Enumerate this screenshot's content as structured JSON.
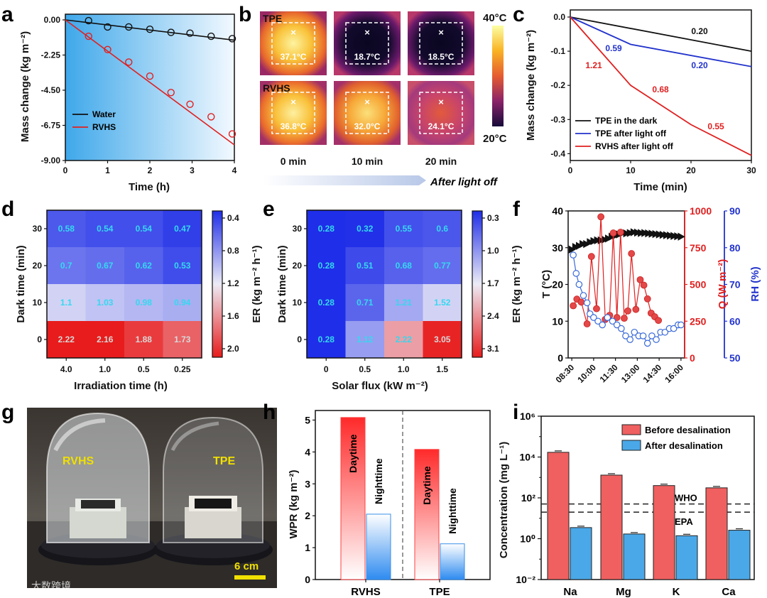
{
  "panel_labels": [
    "a",
    "b",
    "c",
    "d",
    "e",
    "f",
    "g",
    "h",
    "i"
  ],
  "watermark": "大数跨境",
  "colors": {
    "black": "#111111",
    "red": "#e02020",
    "blue": "#2233cc",
    "light_blue": "#4aa8e8",
    "salmon": "#f06060"
  },
  "chart_data": [
    {
      "id": "a",
      "type": "scatter",
      "xlabel": "Time (h)",
      "ylabel": "Mass change (kg m⁻²)",
      "xlim": [
        0,
        4
      ],
      "ylim": [
        -9.0,
        0.0
      ],
      "xticks": [
        "0",
        "1",
        "2",
        "3",
        "4"
      ],
      "yticks": [
        "0.00",
        "-2.25",
        "-4.50",
        "-6.75",
        "-9.00"
      ],
      "series": [
        {
          "name": "Water",
          "x": [
            0.55,
            1.0,
            1.5,
            2.0,
            2.5,
            2.95,
            3.45,
            3.95
          ],
          "y": [
            -0.05,
            -0.45,
            -0.45,
            -0.6,
            -0.8,
            -0.85,
            -1.05,
            -1.2
          ],
          "fit": [
            [
              0,
              0
            ],
            [
              4,
              -1.3
            ]
          ]
        },
        {
          "name": "RVHS",
          "x": [
            0.55,
            1.0,
            1.5,
            2.0,
            2.5,
            2.95,
            3.45,
            3.95
          ],
          "y": [
            -1.05,
            -1.9,
            -2.7,
            -3.6,
            -4.65,
            -5.4,
            -6.2,
            -7.3
          ],
          "fit": [
            [
              0,
              0
            ],
            [
              4,
              -8.0
            ]
          ]
        }
      ],
      "legend": "bottom-left"
    },
    {
      "id": "b",
      "type": "heatmap",
      "rows": [
        "TPE",
        "RVHS"
      ],
      "columns": [
        "0 min",
        "10 min",
        "20 min"
      ],
      "values": [
        [
          "37.1°C",
          "18.7°C",
          "18.5°C"
        ],
        [
          "36.8°C",
          "32.0°C",
          "24.1°C"
        ]
      ],
      "colorbar": [
        "40°C",
        "20°C"
      ],
      "annotation": "After light off"
    },
    {
      "id": "c",
      "type": "line",
      "xlabel": "Time (min)",
      "ylabel": "Mass change (kg m⁻²)",
      "xlim": [
        0,
        30
      ],
      "ylim": [
        -0.42,
        0.0
      ],
      "xticks": [
        "0",
        "10",
        "20",
        "30"
      ],
      "yticks": [
        "0.0",
        "-0.1",
        "-0.2",
        "-0.3",
        "-0.4"
      ],
      "series": [
        {
          "name": "TPE in the dark",
          "x": [
            0,
            30
          ],
          "y": [
            0,
            -0.1
          ],
          "labels": [
            "0.20"
          ]
        },
        {
          "name": "TPE after light off",
          "x": [
            0,
            10,
            30
          ],
          "y": [
            0,
            -0.08,
            -0.145
          ],
          "labels": [
            "0.59",
            "0.20"
          ]
        },
        {
          "name": "RVHS after light off",
          "x": [
            0,
            10,
            20,
            30
          ],
          "y": [
            0,
            -0.2,
            -0.315,
            -0.405
          ],
          "labels": [
            "1.21",
            "0.68",
            "0.55"
          ]
        }
      ],
      "legend": "bottom-left"
    },
    {
      "id": "d",
      "type": "heatmap",
      "xlabel": "Irradiation time (h)",
      "ylabel": "Dark time (min)",
      "x": [
        "4.0",
        "1.0",
        "0.5",
        "0.25"
      ],
      "y": [
        "30",
        "20",
        "10",
        "0"
      ],
      "values": [
        [
          "0.58",
          "0.54",
          "0.54",
          "0.47"
        ],
        [
          "0.7",
          "0.67",
          "0.62",
          "0.53"
        ],
        [
          "1.1",
          "1.03",
          "0.98",
          "0.94"
        ],
        [
          "2.22",
          "2.16",
          "1.88",
          "1.73"
        ]
      ],
      "colorbar_label": "ER (kg m⁻² h⁻¹)",
      "colorbar_ticks": [
        "0.4",
        "0.8",
        "1.2",
        "1.6",
        "2.0"
      ]
    },
    {
      "id": "e",
      "type": "heatmap",
      "xlabel": "Solar flux (kW m⁻²)",
      "ylabel": "Dark time (min)",
      "x": [
        "0",
        "0.5",
        "1.0",
        "1.5"
      ],
      "y": [
        "30",
        "20",
        "10",
        "0"
      ],
      "values": [
        [
          "0.28",
          "0.32",
          "0.55",
          "0.6"
        ],
        [
          "0.28",
          "0.51",
          "0.68",
          "0.77"
        ],
        [
          "0.28",
          "0.71",
          "1.21",
          "1.52"
        ],
        [
          "0.28",
          "1.12",
          "2.22",
          "3.05"
        ]
      ],
      "colorbar_label": "ER (kg m⁻² h⁻¹)",
      "colorbar_ticks": [
        "0.3",
        "1.0",
        "1.7",
        "2.4",
        "3.1"
      ]
    },
    {
      "id": "f",
      "type": "line",
      "ylabel_left": "T (°C)",
      "ylabel_right1": "Q (W m⁻²)",
      "ylabel_right2": "RH (%)",
      "xticks": [
        "08:30",
        "10:00",
        "11:30",
        "13:00",
        "14:30",
        "16:00"
      ],
      "yticks_left": [
        "0",
        "10",
        "20",
        "30",
        "40"
      ],
      "yticks_right1": [
        "0",
        "250",
        "500",
        "750",
        "1000"
      ],
      "yticks_right2": [
        "50",
        "60",
        "70",
        "80",
        "90"
      ],
      "x": [
        8.5,
        8.75,
        9.0,
        9.25,
        9.5,
        9.75,
        10.0,
        10.25,
        10.5,
        10.75,
        11.0,
        11.25,
        11.5,
        11.75,
        12.0,
        12.25,
        12.5,
        12.75,
        13.0,
        13.25,
        13.5,
        13.75,
        14.0,
        14.25,
        14.5,
        14.75,
        15.0,
        15.25,
        15.5,
        15.75,
        16.0
      ],
      "series": [
        {
          "name": "T",
          "y": [
            29.5,
            30.2,
            30.5,
            31.0,
            31.0,
            31.5,
            31.8,
            32.0,
            32.0,
            32.2,
            32.5,
            33.0,
            33.3,
            33.6,
            34.0,
            33.9,
            34.0,
            34.2,
            34.1,
            34.0,
            34.0,
            33.9,
            33.8,
            33.7,
            33.6,
            33.5,
            33.4,
            33.3,
            33.2,
            33.1,
            33.0
          ]
        },
        {
          "name": "Q",
          "x": [
            8.6,
            8.85,
            9.15,
            9.55,
            9.85,
            10.2,
            10.5,
            10.8,
            11.1,
            11.35,
            11.6,
            11.85,
            12.1,
            12.35,
            12.6,
            12.9,
            13.2,
            13.45,
            13.7,
            13.95,
            14.2,
            14.45
          ],
          "y": [
            355,
            400,
            380,
            232,
            690,
            335,
            960,
            262,
            290,
            850,
            275,
            855,
            270,
            320,
            710,
            330,
            532,
            495,
            402,
            305,
            280,
            255
          ]
        },
        {
          "name": "RH",
          "x": [
            8.6,
            8.8,
            9.0,
            9.3,
            9.55,
            9.75,
            10.0,
            10.3,
            10.6,
            10.95,
            11.3,
            11.6,
            11.9,
            12.2,
            12.5,
            12.8,
            13.1,
            13.4,
            13.7,
            14.0,
            14.3,
            14.6,
            14.9,
            15.2,
            15.5,
            15.8,
            16.0
          ],
          "y": [
            78,
            73,
            70,
            67,
            65,
            62,
            61,
            60,
            59,
            61,
            60,
            59,
            58,
            56,
            55,
            57,
            56,
            56,
            54,
            56,
            55,
            57,
            57,
            58,
            58,
            59,
            59
          ]
        }
      ]
    },
    {
      "id": "h",
      "type": "bar",
      "ylabel": "WPR (kg m⁻²)",
      "categories": [
        "RVHS",
        "TPE"
      ],
      "yticks": [
        "0",
        "1",
        "2",
        "3",
        "4",
        "5"
      ],
      "ylim": [
        0,
        5.3
      ],
      "series": [
        {
          "name": "Daytime",
          "values": [
            5.08,
            4.08
          ]
        },
        {
          "name": "Nighttime",
          "values": [
            2.05,
            1.12
          ]
        }
      ]
    },
    {
      "id": "i",
      "type": "bar",
      "ylabel": "Concentration (mg L⁻¹)",
      "yscale": "log",
      "categories": [
        "Na",
        "Mg",
        "K",
        "Ca"
      ],
      "yticks": [
        "10⁻²",
        "10⁰",
        "10²",
        "10⁴",
        "10⁶"
      ],
      "series": [
        {
          "name": "Before desalination",
          "values": [
            17000,
            1300,
            400,
            310
          ]
        },
        {
          "name": "After desalination",
          "values": [
            3.5,
            1.7,
            1.4,
            2.6
          ]
        }
      ],
      "reference_lines": [
        {
          "label": "WHO",
          "value": 50
        },
        {
          "label": "EPA",
          "value": 20
        }
      ],
      "legend": "top-right"
    },
    {
      "id": "g",
      "type": "photo",
      "labels": [
        "RVHS",
        "TPE"
      ],
      "scale_bar": "6 cm"
    }
  ]
}
